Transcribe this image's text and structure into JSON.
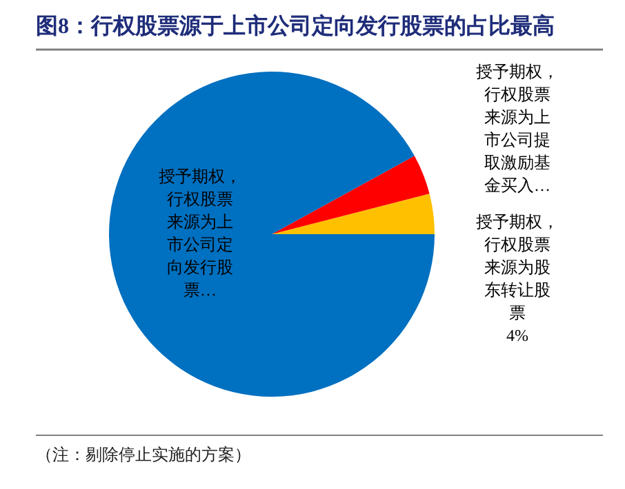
{
  "chart_data": {
    "type": "pie",
    "title": "图8：行权股票源于上市公司定向发行股票的占比最高",
    "categories": [
      "授予期权，行权股票来源为上市公司定向发行股票…",
      "授予期权，行权股票来源为上市公司提取激励基金买入…",
      "授予期权，行权股票来源为股东转让股票"
    ],
    "values": [
      92,
      4,
      4
    ],
    "colors": [
      "#0070c0",
      "#ff0000",
      "#ffc000"
    ],
    "value_labels": [
      null,
      null,
      "4%"
    ],
    "annotations": [
      "（注：剔除停止实施的方案）"
    ]
  }
}
